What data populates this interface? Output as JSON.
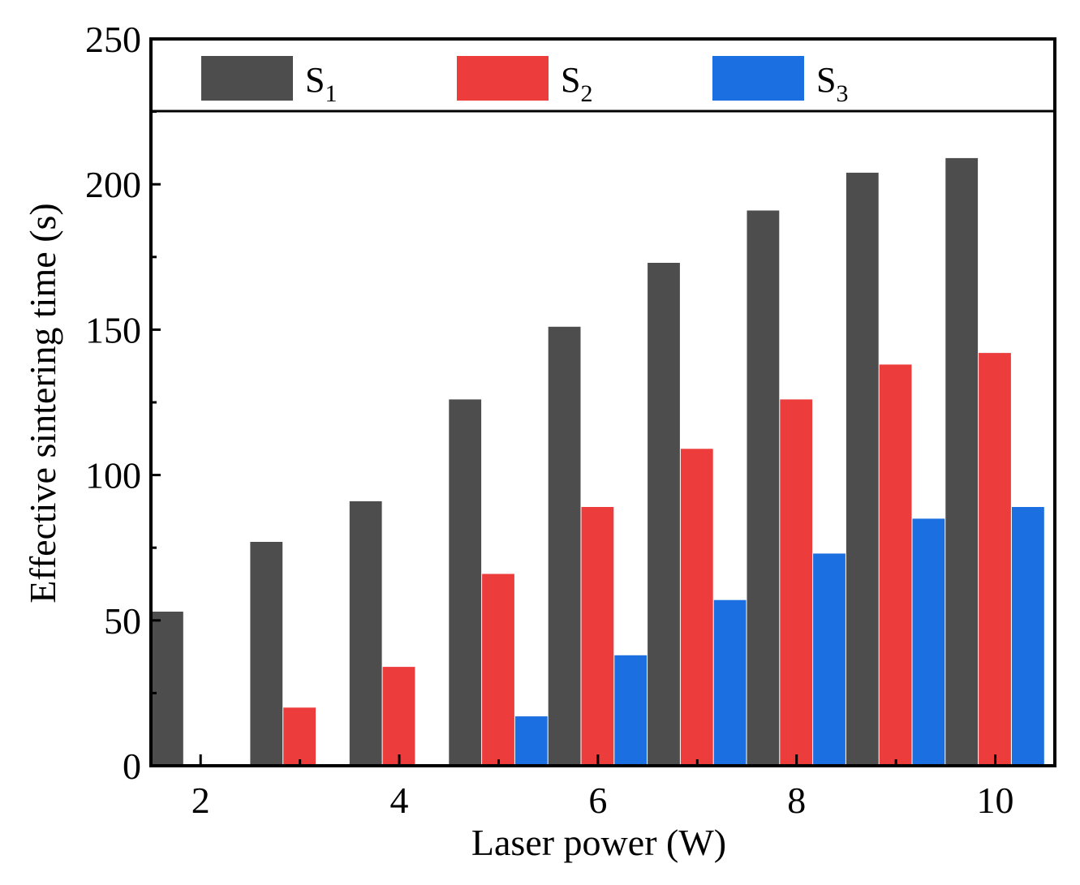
{
  "chart_data": {
    "type": "bar",
    "x": [
      2,
      3,
      4,
      5,
      6,
      7,
      8,
      9,
      10
    ],
    "x_ticks": [
      "2",
      "4",
      "6",
      "8",
      "10"
    ],
    "y_ticks": [
      "0",
      "50",
      "100",
      "150",
      "200",
      "250"
    ],
    "xlabel": "Laser power (W)",
    "ylabel": "Effective sintering time (s)",
    "ylim": [
      0,
      250
    ],
    "xlim": [
      1.5,
      10.6
    ],
    "legend_position": "top",
    "series": [
      {
        "name": "S",
        "subscript": "1",
        "color": "#4d4d4d",
        "values": [
          53,
          77,
          91,
          126,
          151,
          173,
          191,
          204,
          209
        ]
      },
      {
        "name": "S",
        "subscript": "2",
        "color": "#ec3c3c",
        "values": [
          0,
          20,
          34,
          66,
          89,
          109,
          126,
          138,
          142
        ]
      },
      {
        "name": "S",
        "subscript": "3",
        "color": "#1b6fe0",
        "values": [
          0,
          0,
          0,
          17,
          38,
          57,
          73,
          85,
          89
        ]
      }
    ]
  }
}
